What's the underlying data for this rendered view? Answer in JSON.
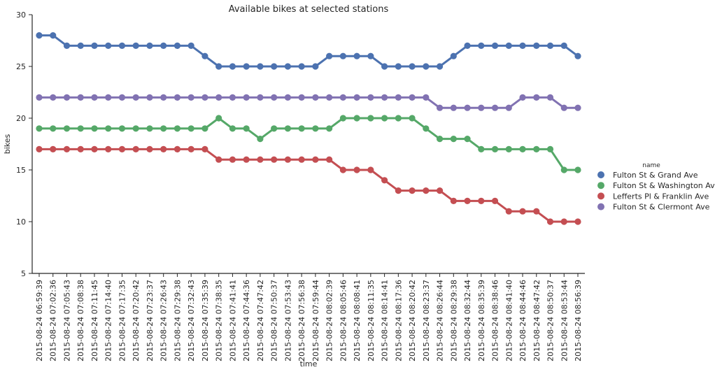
{
  "chart_data": {
    "type": "line",
    "title": "Available bikes at selected stations",
    "xlabel": "time",
    "ylabel": "bikes",
    "ylim": [
      5,
      30
    ],
    "yticks": [
      5,
      10,
      15,
      20,
      25,
      30
    ],
    "grid": false,
    "legend": {
      "title": "name",
      "placement": "right"
    },
    "categories": [
      "2015-08-24 06:59:39",
      "2015-08-24 07:02:36",
      "2015-08-24 07:05:43",
      "2015-08-24 07:08:38",
      "2015-08-24 07:11:45",
      "2015-08-24 07:14:40",
      "2015-08-24 07:17:35",
      "2015-08-24 07:20:42",
      "2015-08-24 07:23:37",
      "2015-08-24 07:26:43",
      "2015-08-24 07:29:38",
      "2015-08-24 07:32:43",
      "2015-08-24 07:35:39",
      "2015-08-24 07:38:35",
      "2015-08-24 07:41:41",
      "2015-08-24 07:44:36",
      "2015-08-24 07:47:42",
      "2015-08-24 07:50:37",
      "2015-08-24 07:53:43",
      "2015-08-24 07:56:38",
      "2015-08-24 07:59:44",
      "2015-08-24 08:02:39",
      "2015-08-24 08:05:46",
      "2015-08-24 08:08:41",
      "2015-08-24 08:11:35",
      "2015-08-24 08:14:41",
      "2015-08-24 08:17:36",
      "2015-08-24 08:20:42",
      "2015-08-24 08:23:37",
      "2015-08-24 08:26:44",
      "2015-08-24 08:29:38",
      "2015-08-24 08:32:44",
      "2015-08-24 08:35:39",
      "2015-08-24 08:38:46",
      "2015-08-24 08:41:40",
      "2015-08-24 08:44:46",
      "2015-08-24 08:47:42",
      "2015-08-24 08:50:37",
      "2015-08-24 08:53:44",
      "2015-08-24 08:56:39"
    ],
    "series": [
      {
        "name": "Fulton St & Grand Ave",
        "color": "#4c72b0",
        "values": [
          28,
          28,
          27,
          27,
          27,
          27,
          27,
          27,
          27,
          27,
          27,
          27,
          26,
          25,
          25,
          25,
          25,
          25,
          25,
          25,
          25,
          26,
          26,
          26,
          26,
          25,
          25,
          25,
          25,
          25,
          26,
          27,
          27,
          27,
          27,
          27,
          27,
          27,
          27,
          26
        ]
      },
      {
        "name": "Fulton St & Washington Ave",
        "color": "#55a868",
        "values": [
          19,
          19,
          19,
          19,
          19,
          19,
          19,
          19,
          19,
          19,
          19,
          19,
          19,
          20,
          19,
          19,
          18,
          19,
          19,
          19,
          19,
          19,
          20,
          20,
          20,
          20,
          20,
          20,
          19,
          18,
          18,
          18,
          17,
          17,
          17,
          17,
          17,
          17,
          15,
          15
        ]
      },
      {
        "name": "Lefferts Pl & Franklin Ave",
        "color": "#c44e52",
        "values": [
          17,
          17,
          17,
          17,
          17,
          17,
          17,
          17,
          17,
          17,
          17,
          17,
          17,
          16,
          16,
          16,
          16,
          16,
          16,
          16,
          16,
          16,
          15,
          15,
          15,
          14,
          13,
          13,
          13,
          13,
          12,
          12,
          12,
          12,
          11,
          11,
          11,
          10,
          10,
          10
        ]
      },
      {
        "name": "Fulton St & Clermont Ave",
        "color": "#8172b2",
        "values": [
          22,
          22,
          22,
          22,
          22,
          22,
          22,
          22,
          22,
          22,
          22,
          22,
          22,
          22,
          22,
          22,
          22,
          22,
          22,
          22,
          22,
          22,
          22,
          22,
          22,
          22,
          22,
          22,
          22,
          21,
          21,
          21,
          21,
          21,
          21,
          22,
          22,
          22,
          21,
          21
        ]
      }
    ]
  }
}
